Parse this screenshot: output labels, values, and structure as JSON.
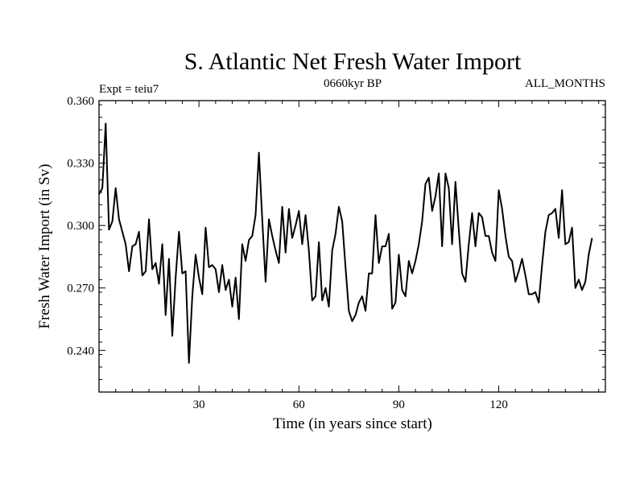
{
  "chart_data": {
    "type": "line",
    "title": "S. Atlantic Net Fresh Water Import",
    "subtitle_left": "Expt = teiu7",
    "subtitle_center": "0660kyr BP",
    "subtitle_right": "ALL_MONTHS",
    "xlabel": "Time (in years since start)",
    "ylabel": "Fresh Water Import (in Sv)",
    "xlim": [
      0,
      152
    ],
    "ylim": [
      0.22,
      0.36
    ],
    "x_ticks": [
      30,
      60,
      90,
      120
    ],
    "x_tick_labels": [
      "30",
      "60",
      "90",
      "120"
    ],
    "y_ticks": [
      0.24,
      0.27,
      0.3,
      0.33,
      0.36
    ],
    "y_tick_labels": [
      "0.240",
      "0.270",
      "0.300",
      "0.330",
      "0.360"
    ],
    "grid": false,
    "series": [
      {
        "name": "S. Atlantic Net Fresh Water Import",
        "x_start": 0,
        "x_step": 1,
        "values": [
          0.315,
          0.318,
          0.349,
          0.298,
          0.302,
          0.318,
          0.303,
          0.297,
          0.291,
          0.278,
          0.29,
          0.291,
          0.297,
          0.276,
          0.278,
          0.303,
          0.279,
          0.282,
          0.272,
          0.291,
          0.257,
          0.284,
          0.247,
          0.275,
          0.297,
          0.277,
          0.278,
          0.234,
          0.266,
          0.286,
          0.275,
          0.267,
          0.299,
          0.28,
          0.281,
          0.279,
          0.268,
          0.281,
          0.269,
          0.274,
          0.261,
          0.275,
          0.255,
          0.291,
          0.283,
          0.293,
          0.295,
          0.305,
          0.335,
          0.303,
          0.273,
          0.303,
          0.295,
          0.288,
          0.282,
          0.309,
          0.287,
          0.308,
          0.294,
          0.3,
          0.307,
          0.291,
          0.305,
          0.288,
          0.264,
          0.266,
          0.292,
          0.264,
          0.27,
          0.261,
          0.288,
          0.296,
          0.309,
          0.302,
          0.28,
          0.259,
          0.254,
          0.257,
          0.263,
          0.266,
          0.259,
          0.277,
          0.277,
          0.305,
          0.282,
          0.29,
          0.29,
          0.296,
          0.26,
          0.263,
          0.286,
          0.269,
          0.266,
          0.283,
          0.277,
          0.283,
          0.291,
          0.302,
          0.32,
          0.323,
          0.307,
          0.314,
          0.325,
          0.29,
          0.325,
          0.318,
          0.291,
          0.321,
          0.298,
          0.277,
          0.273,
          0.291,
          0.306,
          0.29,
          0.306,
          0.304,
          0.295,
          0.295,
          0.287,
          0.283,
          0.317,
          0.308,
          0.295,
          0.285,
          0.283,
          0.273,
          0.278,
          0.284,
          0.276,
          0.267,
          0.267,
          0.268,
          0.263,
          0.281,
          0.297,
          0.305,
          0.306,
          0.308,
          0.294,
          0.317,
          0.291,
          0.292,
          0.299,
          0.27,
          0.274,
          0.269,
          0.273,
          0.286,
          0.294
        ]
      }
    ]
  }
}
